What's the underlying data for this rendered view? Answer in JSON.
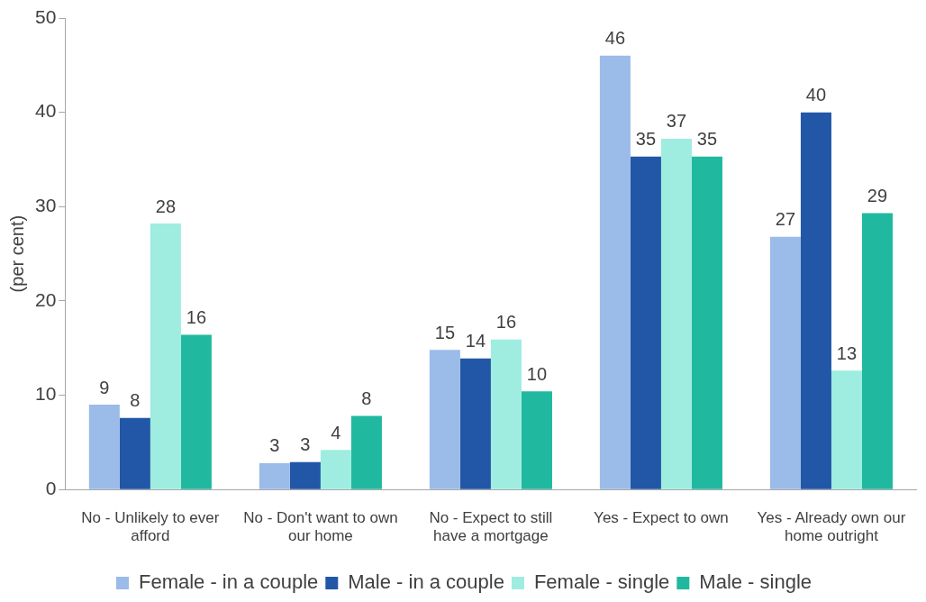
{
  "chart_data": {
    "type": "bar",
    "ylabel": "(per cent)",
    "categories": [
      "No - Unlikely to ever afford",
      "No - Don't want to own our home",
      "No - Expect to still have a mortgage",
      "Yes - Expect to own",
      "Yes - Already own our home outright"
    ],
    "series": [
      {
        "name": "Female - in a couple",
        "color": "#9bbbe9",
        "values": [
          9.0,
          2.8,
          14.8,
          46.0,
          26.8
        ],
        "value_labels": [
          "9",
          "3",
          "15",
          "46",
          "27"
        ]
      },
      {
        "name": "Male - in a couple",
        "color": "#2257a8",
        "values": [
          7.6,
          2.9,
          13.9,
          35.3,
          40.0
        ],
        "value_labels": [
          "8",
          "3",
          "14",
          "35",
          "40"
        ]
      },
      {
        "name": "Female - single",
        "color": "#9eede0",
        "values": [
          28.2,
          4.2,
          15.9,
          37.2,
          12.6
        ],
        "value_labels": [
          "28",
          "4",
          "16",
          "37",
          "13"
        ]
      },
      {
        "name": "Male - single",
        "color": "#20b9a0",
        "values": [
          16.4,
          7.8,
          10.4,
          35.3,
          29.3
        ],
        "value_labels": [
          "16",
          "8",
          "10",
          "35",
          "29"
        ]
      }
    ],
    "ylim": [
      0,
      50
    ],
    "yticks": [
      0,
      10,
      20,
      30,
      40,
      50
    ],
    "grid": false,
    "legend": "bottom"
  }
}
